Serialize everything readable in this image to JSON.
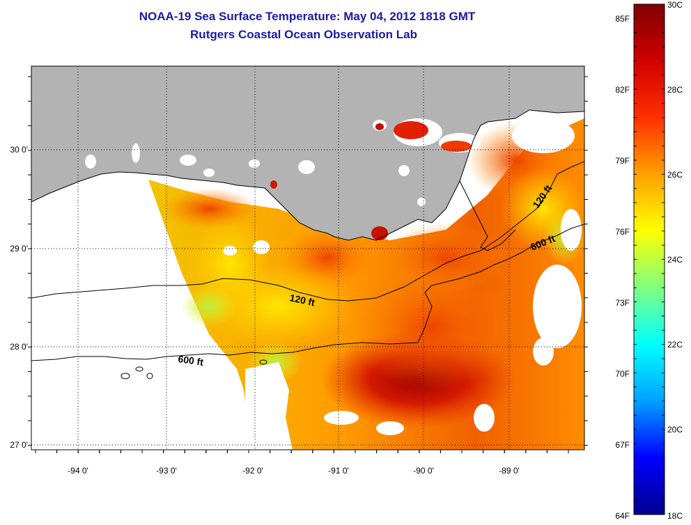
{
  "header": {
    "title": "NOAA-19 Sea Surface Temperature:  May 04, 2012 1818 GMT",
    "subtitle": "Rutgers Coastal Ocean Observation Lab"
  },
  "map": {
    "lon_range": [
      -94.5,
      -88.25
    ],
    "lat_range": [
      26.95,
      30.87
    ],
    "x_ticks": [
      {
        "value": -94,
        "label": "-94 0'"
      },
      {
        "value": -93,
        "label": "-93 0'"
      },
      {
        "value": -92,
        "label": "-92 0'"
      },
      {
        "value": -91,
        "label": "-91 0'"
      },
      {
        "value": -90,
        "label": "-90 0'"
      },
      {
        "value": -89,
        "label": "-89 0'"
      }
    ],
    "y_ticks": [
      {
        "value": 30,
        "label": "30 0'"
      },
      {
        "value": 29,
        "label": "29 0'"
      },
      {
        "value": 28,
        "label": "28 0'"
      },
      {
        "value": 27,
        "label": "27 0'"
      }
    ],
    "grid": "dotted",
    "colors": {
      "land": "#b3b3b3",
      "no_data": "#ffffff",
      "coastline": "#000000"
    },
    "contours": [
      {
        "name": "120 ft",
        "label": "120 ft"
      },
      {
        "name": "600 ft",
        "label": "600 ft"
      },
      {
        "name": "120 ft east",
        "label": "120 ft"
      },
      {
        "name": "600 ft east",
        "label": "600 ft"
      }
    ]
  },
  "colorbar": {
    "range_c": [
      18,
      30
    ],
    "fahrenheit_labels": [
      {
        "value": 85,
        "label": "85F"
      },
      {
        "value": 82,
        "label": "82F"
      },
      {
        "value": 79,
        "label": "79F"
      },
      {
        "value": 76,
        "label": "76F"
      },
      {
        "value": 73,
        "label": "73F"
      },
      {
        "value": 70,
        "label": "70F"
      },
      {
        "value": 67,
        "label": "67F"
      },
      {
        "value": 64,
        "label": "64F"
      }
    ],
    "celsius_labels": [
      {
        "value": 30,
        "label": "30C"
      },
      {
        "value": 28,
        "label": "28C"
      },
      {
        "value": 26,
        "label": "26C"
      },
      {
        "value": 24,
        "label": "24C"
      },
      {
        "value": 22,
        "label": "22C"
      },
      {
        "value": 20,
        "label": "20C"
      },
      {
        "value": 18,
        "label": "18C"
      }
    ],
    "colormap": [
      "#00008f",
      "#0000ff",
      "#00a0ff",
      "#00ffff",
      "#80ff80",
      "#ffff00",
      "#ffa000",
      "#ff3000",
      "#d00000",
      "#800000"
    ]
  }
}
